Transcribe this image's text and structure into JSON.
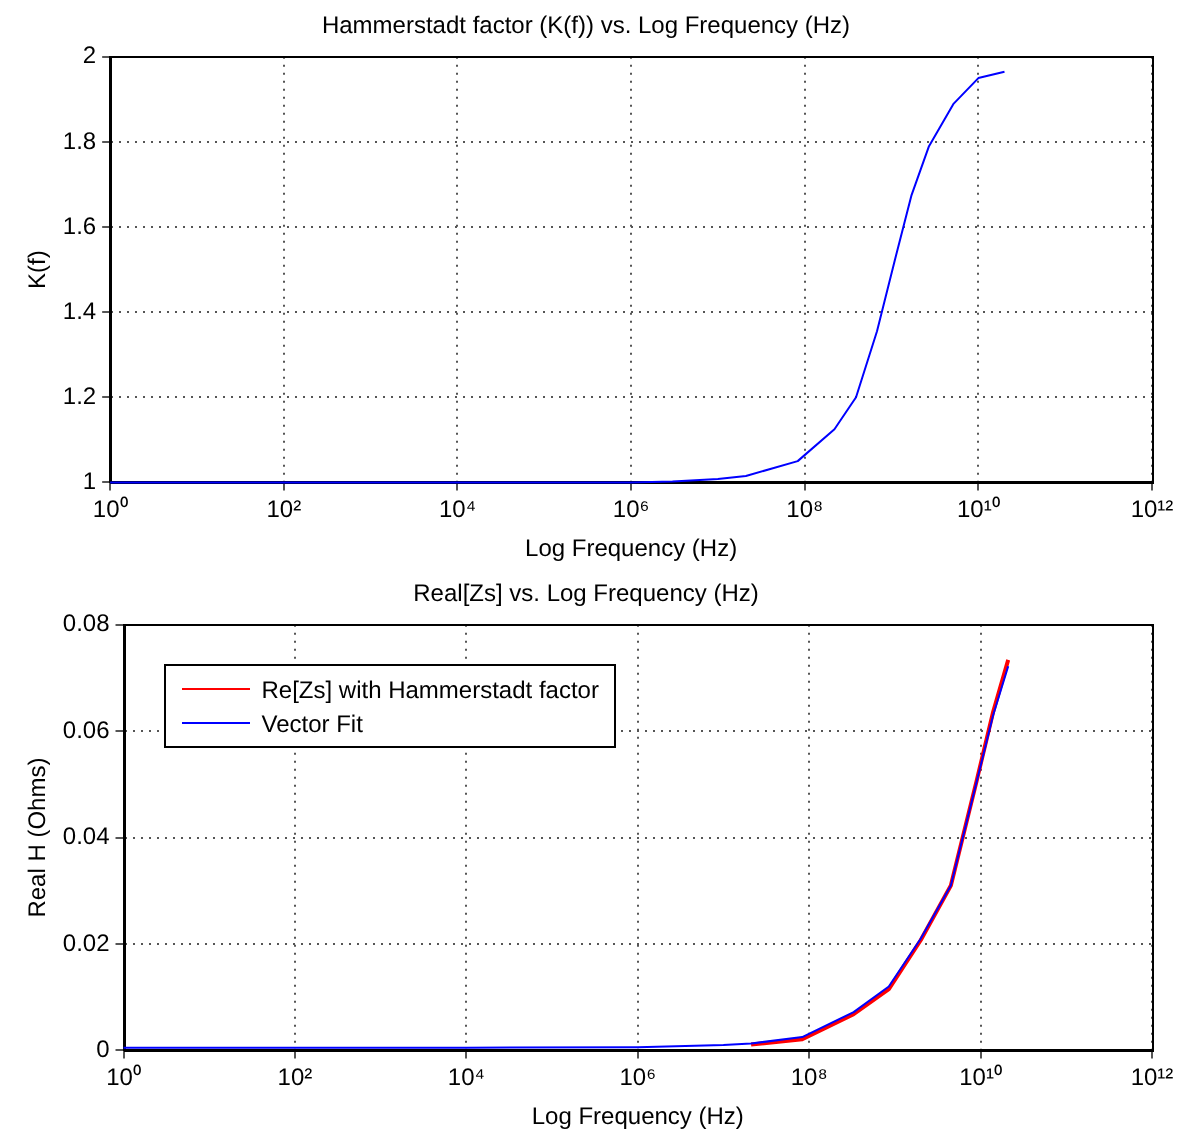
{
  "chart_data": [
    {
      "type": "line",
      "title": "Hammerstadt factor (K(f)) vs. Log Frequency (Hz)",
      "xlabel": "Log Frequency (Hz)",
      "ylabel": "K(f)",
      "log": "x",
      "x": [
        1,
        100,
        10000,
        1000000,
        3000000,
        10000000,
        21000000,
        83000000,
        220000000,
        390000000,
        680000000,
        1100000000,
        1700000000,
        2700000000,
        5200000000,
        10000000000,
        20000000000
      ],
      "series": [
        {
          "color": "#0000ff",
          "values": [
            1,
            1,
            1,
            1,
            1.002,
            1.008,
            1.015,
            1.05,
            1.125,
            1.2,
            1.355,
            1.525,
            1.675,
            1.79,
            1.89,
            1.95,
            1.965
          ]
        }
      ],
      "xlim": [
        1,
        1000000000000
      ],
      "xticks": [
        {
          "value": 1,
          "label": "10⁰"
        },
        {
          "value": 100,
          "label": "10²"
        },
        {
          "value": 10000,
          "label": "10⁴"
        },
        {
          "value": 1000000,
          "label": "10⁶"
        },
        {
          "value": 100000000,
          "label": "10⁸"
        },
        {
          "value": 10000000000,
          "label": "10¹⁰"
        },
        {
          "value": 1000000000000,
          "label": "10¹²"
        }
      ],
      "ylim": [
        1,
        2
      ],
      "yticks": [
        1,
        1.2,
        1.4,
        1.6,
        1.8,
        2
      ],
      "grid": true,
      "legend": false,
      "line_style": "solid"
    },
    {
      "type": "line",
      "title": "Real[Zs] vs. Log Frequency (Hz)",
      "xlabel": "Log Frequency (Hz)",
      "ylabel": "Real H (Ohms)",
      "log": "x",
      "x": [
        1,
        100,
        10000,
        1000000,
        10000000,
        21000000,
        83000000,
        330000000,
        850000000,
        2000000000,
        4500000000,
        9000000000,
        14000000000,
        21000000000
      ],
      "series": [
        {
          "name": "Re[Zs] with Hammerstadt factor",
          "color": "#ff0000",
          "values": [
            null,
            null,
            null,
            null,
            null,
            0.0011,
            0.0021,
            0.0068,
            0.0115,
            0.0207,
            0.031,
            0.0507,
            0.0636,
            0.0734
          ]
        },
        {
          "name": "Vector Fit",
          "color": "#0000ff",
          "values": [
            0.0005,
            0.0005,
            0.0005,
            0.0006,
            0.001,
            0.0013,
            0.0025,
            0.0072,
            0.012,
            0.021,
            0.031,
            0.0505,
            0.063,
            0.0722
          ]
        }
      ],
      "xlim": [
        1,
        1000000000000
      ],
      "xticks": [
        {
          "value": 1,
          "label": "10⁰"
        },
        {
          "value": 100,
          "label": "10²"
        },
        {
          "value": 10000,
          "label": "10⁴"
        },
        {
          "value": 1000000,
          "label": "10⁶"
        },
        {
          "value": 100000000,
          "label": "10⁸"
        },
        {
          "value": 10000000000,
          "label": "10¹⁰"
        },
        {
          "value": 1000000000000,
          "label": "10¹²"
        }
      ],
      "ylim": [
        0,
        0.08
      ],
      "yticks": [
        0,
        0.02,
        0.04,
        0.06,
        0.08
      ],
      "grid": true,
      "legend": "top left",
      "line_style": "solid"
    }
  ]
}
